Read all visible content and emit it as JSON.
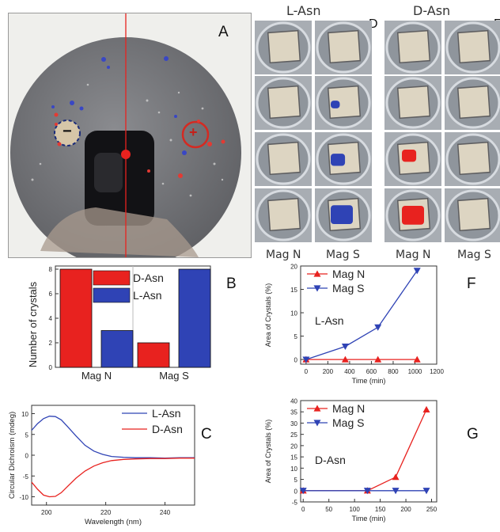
{
  "panels": {
    "A": {
      "letter": "A",
      "neg_sign": "−",
      "pos_sign": "+"
    },
    "B": {
      "letter": "B"
    },
    "C": {
      "letter": "C"
    },
    "D": {
      "letter": "D",
      "col_l": "L-Asn",
      "col_d": "D-Asn",
      "extra_letter": "E",
      "mag_n": "Mag N",
      "mag_s": "Mag S"
    },
    "F": {
      "letter": "F"
    },
    "G": {
      "letter": "G"
    }
  },
  "colors": {
    "red": "#e8221f",
    "blue": "#2f43b5",
    "wafer": "#6e6f73"
  },
  "chart_data": [
    {
      "id": "B",
      "type": "bar",
      "categories": [
        "Mag N",
        "Mag S"
      ],
      "series": [
        {
          "name": "D-Asn",
          "values": [
            8,
            2
          ],
          "color": "#e8221f"
        },
        {
          "name": "L-Asn",
          "values": [
            3,
            8
          ],
          "color": "#2f43b5"
        }
      ],
      "ylabel": "Number of crystals",
      "ylim": [
        0,
        8
      ],
      "yticks": [
        "0",
        "2",
        "4",
        "6",
        "8"
      ],
      "legend": "top-left"
    },
    {
      "id": "C",
      "type": "line",
      "xlabel": "Wavelength (nm)",
      "ylabel": "Circular Dichroism (mdeg)",
      "xlim": [
        195,
        250
      ],
      "ylim": [
        -12,
        12
      ],
      "xticks": [
        "200",
        "220",
        "240"
      ],
      "yticks": [
        "10",
        "5",
        "0",
        "-5",
        "-10"
      ],
      "series": [
        {
          "name": "L-Asn",
          "color": "#2f43b5",
          "x": [
            195,
            197,
            199,
            201,
            203,
            205,
            207,
            210,
            213,
            216,
            219,
            222,
            226,
            230,
            235,
            240,
            245,
            250
          ],
          "y": [
            6,
            7.6,
            8.8,
            9.4,
            9.3,
            8.5,
            7,
            4.6,
            2.4,
            1,
            0.2,
            -0.3,
            -0.5,
            -0.6,
            -0.6,
            -0.7,
            -0.6,
            -0.6
          ]
        },
        {
          "name": "D-Asn",
          "color": "#e8221f",
          "x": [
            195,
            197,
            199,
            201,
            203,
            205,
            207,
            210,
            213,
            216,
            219,
            222,
            226,
            230,
            235,
            240,
            245,
            250
          ],
          "y": [
            -6.5,
            -8.2,
            -9.6,
            -10,
            -9.9,
            -9,
            -7.6,
            -5.5,
            -3.8,
            -2.6,
            -1.8,
            -1.3,
            -1,
            -0.9,
            -0.8,
            -0.8,
            -0.7,
            -0.7
          ]
        }
      ]
    },
    {
      "id": "F",
      "type": "line",
      "xlabel": "Time (min)",
      "ylabel": "Area of Crystals (%)",
      "annotation": "L-Asn",
      "xlim": [
        -50,
        1200
      ],
      "ylim": [
        -1,
        20
      ],
      "xticks": [
        "0",
        "200",
        "400",
        "600",
        "800",
        "1000",
        "1200"
      ],
      "yticks": [
        "0",
        "5",
        "10",
        "15",
        "20"
      ],
      "legend": "top-left",
      "series": [
        {
          "name": "Mag N",
          "color": "#e8221f",
          "marker": "triangle-up",
          "x": [
            0,
            360,
            660,
            1020
          ],
          "y": [
            0,
            0,
            0,
            0
          ]
        },
        {
          "name": "Mag S",
          "color": "#2f43b5",
          "marker": "triangle-down",
          "x": [
            0,
            360,
            660,
            1020
          ],
          "y": [
            0,
            2.8,
            6.9,
            19
          ]
        }
      ]
    },
    {
      "id": "G",
      "type": "line",
      "xlabel": "Time (min)",
      "ylabel": "Area of Crystals (%)",
      "annotation": "D-Asn",
      "xlim": [
        -5,
        260
      ],
      "ylim": [
        -5,
        40
      ],
      "xticks": [
        "0",
        "50",
        "100",
        "150",
        "200",
        "250"
      ],
      "yticks": [
        "-5",
        "0",
        "5",
        "10",
        "15",
        "20",
        "25",
        "30",
        "35",
        "40"
      ],
      "legend": "top-left",
      "series": [
        {
          "name": "Mag N",
          "color": "#e8221f",
          "marker": "triangle-up",
          "x": [
            0,
            125,
            180,
            240
          ],
          "y": [
            0,
            0,
            6,
            36
          ]
        },
        {
          "name": "Mag S",
          "color": "#2f43b5",
          "marker": "triangle-down",
          "x": [
            0,
            125,
            180,
            240
          ],
          "y": [
            0,
            0,
            0,
            0
          ]
        }
      ]
    }
  ]
}
